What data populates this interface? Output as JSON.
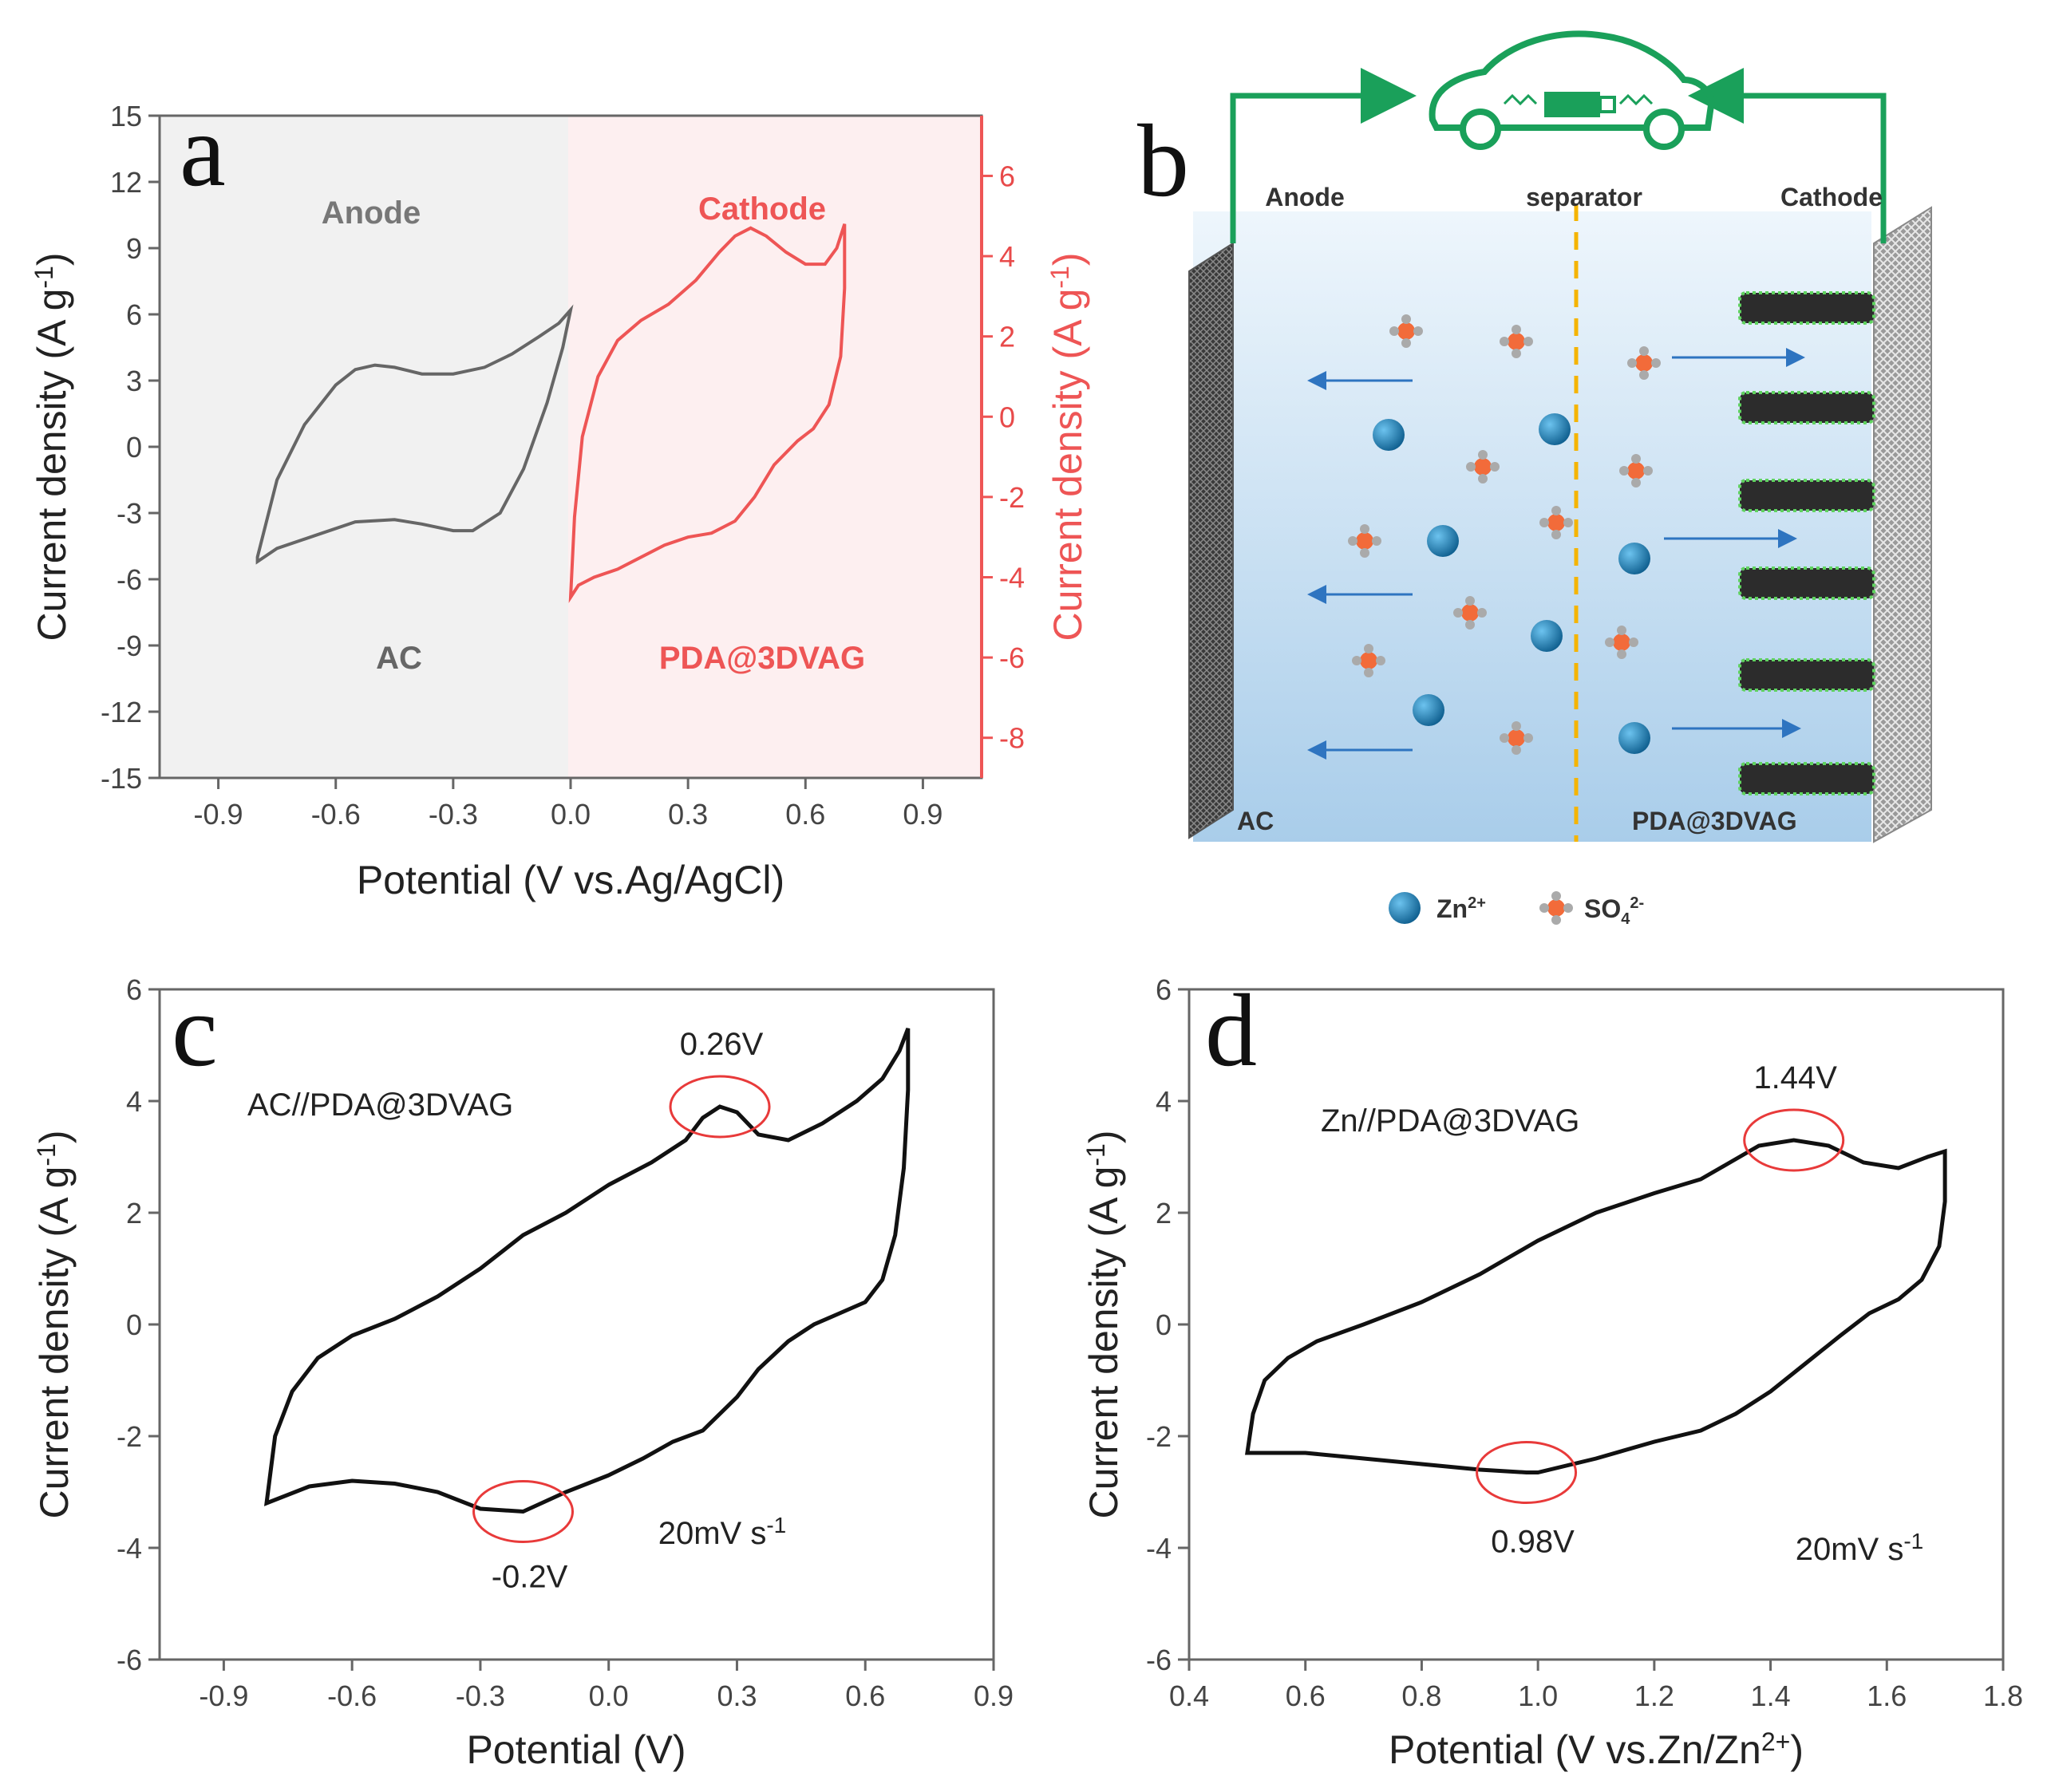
{
  "chart_data": [
    {
      "panel": "a",
      "type": "line",
      "xlabel": "Potential (V vs.Ag/AgCl)",
      "ylabel_left": "Current density (A g-1)",
      "ylabel_right": "Current density (A g-1)",
      "xlim": [
        -1.05,
        1.05
      ],
      "ylim_left": [
        -15,
        15
      ],
      "ylim_right": [
        -9,
        7.5
      ],
      "x_ticks": [
        "-0.9",
        "-0.6",
        "-0.3",
        "0.0",
        "0.3",
        "0.6",
        "0.9"
      ],
      "y_ticks_left": [
        "15",
        "12",
        "9",
        "6",
        "3",
        "0",
        "-3",
        "-6",
        "-9",
        "-12",
        "-15"
      ],
      "y_ticks_right": [
        "6",
        "4",
        "2",
        "0",
        "-2",
        "-4",
        "-6",
        "-8"
      ],
      "regions": {
        "left_top": "Anode",
        "right_top": "Cathode",
        "left_bottom": "AC",
        "right_bottom": "PDA@3DVAG"
      },
      "colors": {
        "anode": "#555555",
        "cathode": "#ee5555",
        "anode_bg": "#f1f1f1",
        "cathode_bg": "#fdeff0"
      },
      "series": [
        {
          "name": "AC",
          "axis": "left",
          "x": [
            -0.8,
            -0.75,
            -0.68,
            -0.6,
            -0.55,
            -0.5,
            -0.45,
            -0.38,
            -0.3,
            -0.22,
            -0.15,
            -0.08,
            -0.03,
            0.0,
            -0.02,
            -0.06,
            -0.12,
            -0.18,
            -0.25,
            -0.3,
            -0.38,
            -0.45,
            -0.55,
            -0.65,
            -0.75,
            -0.8
          ],
          "y": [
            -5.0,
            -1.5,
            1.0,
            2.8,
            3.5,
            3.7,
            3.6,
            3.3,
            3.3,
            3.6,
            4.2,
            5.0,
            5.6,
            6.2,
            4.5,
            2.0,
            -1.0,
            -3.0,
            -3.8,
            -3.8,
            -3.5,
            -3.3,
            -3.4,
            -4.0,
            -4.6,
            -5.2
          ]
        },
        {
          "name": "PDA@3DVAG",
          "axis": "right",
          "x": [
            0.0,
            0.01,
            0.03,
            0.07,
            0.12,
            0.18,
            0.25,
            0.32,
            0.38,
            0.42,
            0.46,
            0.5,
            0.55,
            0.6,
            0.65,
            0.68,
            0.7,
            0.7,
            0.69,
            0.66,
            0.62,
            0.58,
            0.52,
            0.47,
            0.42,
            0.36,
            0.3,
            0.24,
            0.18,
            0.12,
            0.06,
            0.02,
            0.0
          ],
          "y": [
            -4.5,
            -2.5,
            -0.5,
            1.0,
            1.9,
            2.4,
            2.8,
            3.4,
            4.1,
            4.5,
            4.7,
            4.5,
            4.1,
            3.8,
            3.8,
            4.2,
            4.8,
            3.2,
            1.5,
            0.3,
            -0.3,
            -0.6,
            -1.2,
            -2.0,
            -2.6,
            -2.9,
            -3.0,
            -3.2,
            -3.5,
            -3.8,
            -4.0,
            -4.2,
            -4.5
          ]
        }
      ]
    },
    {
      "panel": "c",
      "type": "line",
      "xlabel": "Potential (V)",
      "ylabel": "Current density (A g-1)",
      "xlim": [
        -1.05,
        0.9
      ],
      "ylim": [
        -6,
        6
      ],
      "x_ticks": [
        "-0.9",
        "-0.6",
        "-0.3",
        "0.0",
        "0.3",
        "0.6",
        "0.9"
      ],
      "y_ticks": [
        "6",
        "4",
        "2",
        "0",
        "-2",
        "-4",
        "-6"
      ],
      "label": "AC//PDA@3DVAG",
      "scan_rate": "20mV s-1",
      "peaks": [
        {
          "label": "0.26V",
          "x": 0.26,
          "y": 3.9
        },
        {
          "label": "-0.2V",
          "x": -0.2,
          "y": -3.35
        }
      ],
      "series": [
        {
          "name": "AC//PDA@3DVAG",
          "x": [
            -0.8,
            -0.78,
            -0.74,
            -0.68,
            -0.6,
            -0.5,
            -0.4,
            -0.3,
            -0.2,
            -0.1,
            0.0,
            0.1,
            0.18,
            0.22,
            0.26,
            0.3,
            0.35,
            0.42,
            0.5,
            0.58,
            0.64,
            0.68,
            0.7,
            0.7,
            0.69,
            0.67,
            0.64,
            0.6,
            0.54,
            0.48,
            0.42,
            0.35,
            0.3,
            0.22,
            0.15,
            0.08,
            0.0,
            -0.1,
            -0.2,
            -0.3,
            -0.4,
            -0.5,
            -0.6,
            -0.7,
            -0.8
          ],
          "y": [
            -3.2,
            -2.0,
            -1.2,
            -0.6,
            -0.2,
            0.1,
            0.5,
            1.0,
            1.6,
            2.0,
            2.5,
            2.9,
            3.3,
            3.7,
            3.9,
            3.8,
            3.4,
            3.3,
            3.6,
            4.0,
            4.4,
            4.9,
            5.3,
            4.2,
            2.8,
            1.6,
            0.8,
            0.4,
            0.2,
            0.0,
            -0.3,
            -0.8,
            -1.3,
            -1.9,
            -2.1,
            -2.4,
            -2.7,
            -3.0,
            -3.35,
            -3.3,
            -3.0,
            -2.85,
            -2.8,
            -2.9,
            -3.2
          ]
        }
      ]
    },
    {
      "panel": "d",
      "type": "line",
      "xlabel": "Potential (V vs.Zn/Zn2+)",
      "ylabel": "Current density (A g-1)",
      "xlim": [
        0.4,
        1.8
      ],
      "ylim": [
        -6,
        6
      ],
      "x_ticks": [
        "0.4",
        "0.6",
        "0.8",
        "1.0",
        "1.2",
        "1.4",
        "1.6",
        "1.8"
      ],
      "y_ticks": [
        "6",
        "4",
        "2",
        "0",
        "-2",
        "-4",
        "-6"
      ],
      "label": "Zn//PDA@3DVAG",
      "scan_rate": "20mV s-1",
      "peaks": [
        {
          "label": "1.44V",
          "x": 1.44,
          "y": 3.3
        },
        {
          "label": "0.98V",
          "x": 0.98,
          "y": -2.65
        }
      ],
      "series": [
        {
          "name": "Zn//PDA@3DVAG",
          "x": [
            0.5,
            0.51,
            0.53,
            0.57,
            0.62,
            0.7,
            0.8,
            0.9,
            1.0,
            1.1,
            1.2,
            1.28,
            1.33,
            1.38,
            1.44,
            1.5,
            1.56,
            1.62,
            1.67,
            1.7,
            1.7,
            1.69,
            1.66,
            1.62,
            1.57,
            1.52,
            1.46,
            1.4,
            1.34,
            1.28,
            1.2,
            1.1,
            1.0,
            0.98,
            0.9,
            0.8,
            0.7,
            0.6,
            0.5
          ],
          "y": [
            -2.3,
            -1.6,
            -1.0,
            -0.6,
            -0.3,
            0.0,
            0.4,
            0.9,
            1.5,
            2.0,
            2.35,
            2.6,
            2.9,
            3.2,
            3.3,
            3.2,
            2.9,
            2.8,
            3.0,
            3.1,
            2.2,
            1.4,
            0.8,
            0.45,
            0.2,
            -0.2,
            -0.7,
            -1.2,
            -1.6,
            -1.9,
            -2.1,
            -2.4,
            -2.65,
            -2.65,
            -2.6,
            -2.5,
            -2.4,
            -2.3,
            -2.3
          ]
        }
      ]
    }
  ],
  "panel_labels": {
    "a": "a",
    "b": "b",
    "c": "c",
    "d": "d"
  },
  "schematic": {
    "anode_label": "Anode",
    "separator_label": "separator",
    "cathode_label": "Cathode",
    "anode_material": "AC",
    "cathode_material": "PDA@3DVAG",
    "legend": [
      {
        "ion": "Zn2+",
        "text": "Zn",
        "sup": "2+"
      },
      {
        "ion": "SO42-",
        "text": "SO",
        "sub": "4",
        "sup": "2-"
      }
    ],
    "colors": {
      "wire": "#1aa05a",
      "electrolyte_top": "#e9f3fb",
      "electrolyte_bottom": "#a9cdea",
      "zn_ion": "#1c7fb8",
      "so4_ion": "#f26b3a",
      "separator": "#f5b400",
      "arrow": "#2e74c0"
    }
  },
  "axis_texts": {
    "a_xlabel": "Potential (V vs.Ag/AgCl)",
    "a_ylabel": "Current density (A g",
    "c_xlabel": "Potential (V)",
    "d_xlabel_main": "Potential (V vs.Zn/Zn",
    "d_xlabel_sup": "2+",
    "d_xlabel_end": ")",
    "ylabel_main": "Current density (A g",
    "ylabel_sup": "-1",
    "ylabel_end": ")",
    "scan_main": "20mV s",
    "scan_sup": "-1"
  }
}
